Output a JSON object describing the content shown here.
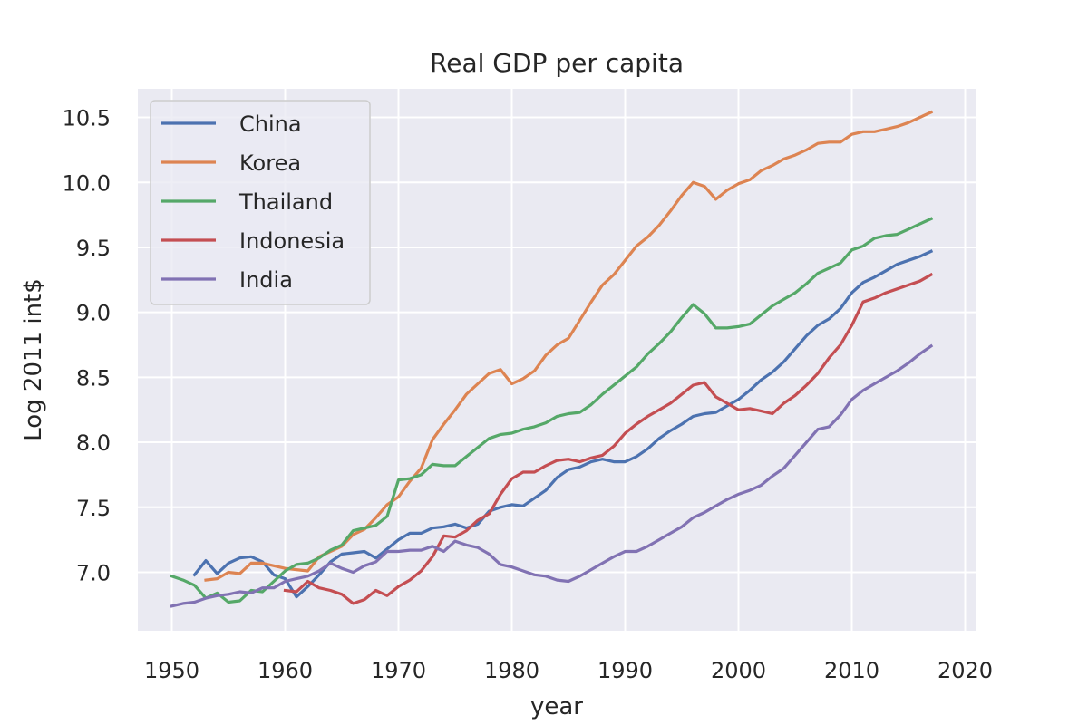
{
  "chart_data": {
    "type": "line",
    "title": "Real GDP per capita",
    "xlabel": "year",
    "ylabel": "Log 2011 int$",
    "xlim": [
      1947,
      2021
    ],
    "ylim": [
      6.55,
      10.72
    ],
    "xticks": [
      1950,
      1960,
      1970,
      1980,
      1990,
      2000,
      2010,
      2020
    ],
    "yticks": [
      7.0,
      7.5,
      8.0,
      8.5,
      9.0,
      9.5,
      10.0,
      10.5
    ],
    "grid": true,
    "legend_position": "top-left",
    "series": [
      {
        "name": "China",
        "color": "#4c72b0",
        "x": [
          1952,
          1953,
          1954,
          1955,
          1956,
          1957,
          1958,
          1959,
          1960,
          1961,
          1962,
          1963,
          1964,
          1965,
          1966,
          1967,
          1968,
          1969,
          1970,
          1971,
          1972,
          1973,
          1974,
          1975,
          1976,
          1977,
          1978,
          1979,
          1980,
          1981,
          1982,
          1983,
          1984,
          1985,
          1986,
          1987,
          1988,
          1989,
          1990,
          1991,
          1992,
          1993,
          1994,
          1995,
          1996,
          1997,
          1998,
          1999,
          2000,
          2001,
          2002,
          2003,
          2004,
          2005,
          2006,
          2007,
          2008,
          2009,
          2010,
          2011,
          2012,
          2013,
          2014,
          2015,
          2016,
          2017
        ],
        "y": [
          6.98,
          7.09,
          6.99,
          7.07,
          7.11,
          7.12,
          7.08,
          6.98,
          6.95,
          6.81,
          6.89,
          6.98,
          7.08,
          7.14,
          7.15,
          7.16,
          7.11,
          7.18,
          7.25,
          7.3,
          7.3,
          7.34,
          7.35,
          7.37,
          7.34,
          7.37,
          7.47,
          7.5,
          7.52,
          7.51,
          7.57,
          7.63,
          7.73,
          7.79,
          7.81,
          7.85,
          7.87,
          7.85,
          7.85,
          7.89,
          7.95,
          8.03,
          8.09,
          8.14,
          8.2,
          8.22,
          8.23,
          8.28,
          8.33,
          8.4,
          8.48,
          8.54,
          8.62,
          8.72,
          8.82,
          8.9,
          8.95,
          9.03,
          9.15,
          9.23,
          9.27,
          9.32,
          9.37,
          9.4,
          9.43,
          9.47
        ]
      },
      {
        "name": "Korea",
        "color": "#dd8452",
        "x": [
          1953,
          1954,
          1955,
          1956,
          1957,
          1958,
          1959,
          1960,
          1961,
          1962,
          1963,
          1964,
          1965,
          1966,
          1967,
          1968,
          1969,
          1970,
          1971,
          1972,
          1973,
          1974,
          1975,
          1976,
          1977,
          1978,
          1979,
          1980,
          1981,
          1982,
          1983,
          1984,
          1985,
          1986,
          1987,
          1988,
          1989,
          1990,
          1991,
          1992,
          1993,
          1994,
          1995,
          1996,
          1997,
          1998,
          1999,
          2000,
          2001,
          2002,
          2003,
          2004,
          2005,
          2006,
          2007,
          2008,
          2009,
          2010,
          2011,
          2012,
          2013,
          2014,
          2015,
          2016,
          2017
        ],
        "y": [
          6.94,
          6.95,
          7.0,
          6.99,
          7.07,
          7.07,
          7.05,
          7.03,
          7.02,
          7.01,
          7.12,
          7.16,
          7.2,
          7.29,
          7.33,
          7.42,
          7.52,
          7.58,
          7.7,
          7.8,
          8.02,
          8.14,
          8.25,
          8.37,
          8.45,
          8.53,
          8.56,
          8.45,
          8.49,
          8.55,
          8.67,
          8.75,
          8.8,
          8.94,
          9.08,
          9.21,
          9.29,
          9.4,
          9.51,
          9.58,
          9.67,
          9.78,
          9.9,
          10.0,
          9.97,
          9.87,
          9.94,
          9.99,
          10.02,
          10.09,
          10.13,
          10.18,
          10.21,
          10.25,
          10.3,
          10.31,
          10.31,
          10.37,
          10.39,
          10.39,
          10.41,
          10.43,
          10.46,
          10.5,
          10.54
        ]
      },
      {
        "name": "Thailand",
        "color": "#55a868",
        "x": [
          1950,
          1951,
          1952,
          1953,
          1954,
          1955,
          1956,
          1957,
          1958,
          1959,
          1960,
          1961,
          1962,
          1963,
          1964,
          1965,
          1966,
          1967,
          1968,
          1969,
          1970,
          1971,
          1972,
          1973,
          1974,
          1975,
          1976,
          1977,
          1978,
          1979,
          1980,
          1981,
          1982,
          1983,
          1984,
          1985,
          1986,
          1987,
          1988,
          1989,
          1990,
          1991,
          1992,
          1993,
          1994,
          1995,
          1996,
          1997,
          1998,
          1999,
          2000,
          2001,
          2002,
          2003,
          2004,
          2005,
          2006,
          2007,
          2008,
          2009,
          2010,
          2011,
          2012,
          2013,
          2014,
          2015,
          2016,
          2017
        ],
        "y": [
          6.97,
          6.94,
          6.9,
          6.8,
          6.84,
          6.77,
          6.78,
          6.86,
          6.85,
          6.93,
          7.01,
          7.06,
          7.07,
          7.11,
          7.17,
          7.21,
          7.32,
          7.34,
          7.36,
          7.43,
          7.71,
          7.72,
          7.75,
          7.83,
          7.82,
          7.82,
          7.89,
          7.96,
          8.03,
          8.06,
          8.07,
          8.1,
          8.12,
          8.15,
          8.2,
          8.22,
          8.23,
          8.29,
          8.37,
          8.44,
          8.51,
          8.58,
          8.68,
          8.76,
          8.85,
          8.96,
          9.06,
          8.99,
          8.88,
          8.88,
          8.89,
          8.91,
          8.98,
          9.05,
          9.1,
          9.15,
          9.22,
          9.3,
          9.34,
          9.38,
          9.48,
          9.51,
          9.57,
          9.59,
          9.6,
          9.64,
          9.68,
          9.72
        ]
      },
      {
        "name": "Indonesia",
        "color": "#c44e52",
        "x": [
          1960,
          1961,
          1962,
          1963,
          1964,
          1965,
          1966,
          1967,
          1968,
          1969,
          1970,
          1971,
          1972,
          1973,
          1974,
          1975,
          1976,
          1977,
          1978,
          1979,
          1980,
          1981,
          1982,
          1983,
          1984,
          1985,
          1986,
          1987,
          1988,
          1989,
          1990,
          1991,
          1992,
          1993,
          1994,
          1995,
          1996,
          1997,
          1998,
          1999,
          2000,
          2001,
          2002,
          2003,
          2004,
          2005,
          2006,
          2007,
          2008,
          2009,
          2010,
          2011,
          2012,
          2013,
          2014,
          2015,
          2016,
          2017
        ],
        "y": [
          6.86,
          6.85,
          6.93,
          6.88,
          6.86,
          6.83,
          6.76,
          6.79,
          6.86,
          6.82,
          6.89,
          6.94,
          7.01,
          7.12,
          7.28,
          7.27,
          7.32,
          7.4,
          7.45,
          7.6,
          7.72,
          7.77,
          7.77,
          7.82,
          7.86,
          7.87,
          7.85,
          7.88,
          7.9,
          7.97,
          8.07,
          8.14,
          8.2,
          8.25,
          8.3,
          8.37,
          8.44,
          8.46,
          8.35,
          8.3,
          8.25,
          8.26,
          8.24,
          8.22,
          8.3,
          8.36,
          8.44,
          8.53,
          8.65,
          8.75,
          8.9,
          9.08,
          9.11,
          9.15,
          9.18,
          9.21,
          9.24,
          9.29
        ]
      },
      {
        "name": "India",
        "color": "#8172b3",
        "x": [
          1950,
          1951,
          1952,
          1953,
          1954,
          1955,
          1956,
          1957,
          1958,
          1959,
          1960,
          1961,
          1962,
          1963,
          1964,
          1965,
          1966,
          1967,
          1968,
          1969,
          1970,
          1971,
          1972,
          1973,
          1974,
          1975,
          1976,
          1977,
          1978,
          1979,
          1980,
          1981,
          1982,
          1983,
          1984,
          1985,
          1986,
          1987,
          1988,
          1989,
          1990,
          1991,
          1992,
          1993,
          1994,
          1995,
          1996,
          1997,
          1998,
          1999,
          2000,
          2001,
          2002,
          2003,
          2004,
          2005,
          2006,
          2007,
          2008,
          2009,
          2010,
          2011,
          2012,
          2013,
          2014,
          2015,
          2016,
          2017
        ],
        "y": [
          6.74,
          6.76,
          6.77,
          6.8,
          6.82,
          6.83,
          6.85,
          6.84,
          6.88,
          6.88,
          6.93,
          6.95,
          6.97,
          7.01,
          7.07,
          7.03,
          7.0,
          7.05,
          7.08,
          7.16,
          7.16,
          7.17,
          7.17,
          7.2,
          7.16,
          7.24,
          7.21,
          7.19,
          7.14,
          7.06,
          7.04,
          7.01,
          6.98,
          6.97,
          6.94,
          6.93,
          6.97,
          7.02,
          7.07,
          7.12,
          7.16,
          7.16,
          7.2,
          7.25,
          7.3,
          7.35,
          7.42,
          7.46,
          7.51,
          7.56,
          7.6,
          7.63,
          7.67,
          7.74,
          7.8,
          7.9,
          8.0,
          8.1,
          8.12,
          8.21,
          8.33,
          8.4,
          8.45,
          8.5,
          8.55,
          8.61,
          8.68,
          8.74
        ]
      }
    ]
  }
}
